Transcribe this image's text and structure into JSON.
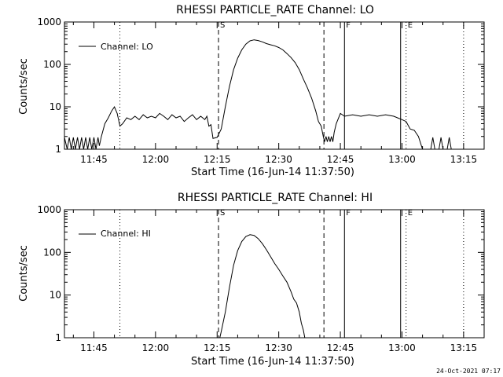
{
  "timestamp": "24-Oct-2021 07:17",
  "chart_data": [
    {
      "type": "line",
      "title": "RHESSI PARTICLE_RATE Channel: LO",
      "xlabel": "Start Time (16-Jun-14 11:37:50)",
      "ylabel": "Counts/sec",
      "yscale": "log",
      "ylim": [
        1,
        1000
      ],
      "xlim": [
        "11:37:50",
        "13:20:00"
      ],
      "ytick_labels": [
        "1",
        "10",
        "100",
        "1000"
      ],
      "xtick_labels": [
        "11:45",
        "12:00",
        "12:15",
        "12:30",
        "12:45",
        "13:00",
        "13:15"
      ],
      "legend": {
        "position": "top-left",
        "entries": [
          "Channel: LO"
        ]
      },
      "markers": [
        {
          "label": "S",
          "time": "12:15:20",
          "style": "dashed"
        },
        {
          "label": "",
          "time": "12:41:00",
          "style": "dashed"
        },
        {
          "label": "F",
          "time": "12:46:00",
          "style": "solid"
        },
        {
          "label": "",
          "time": "12:59:40",
          "style": "solid"
        },
        {
          "label": "E",
          "time": "13:01:00",
          "style": "dotted"
        },
        {
          "label": "",
          "time": "11:51:20",
          "style": "dotted"
        },
        {
          "label": "",
          "time": "13:15:00",
          "style": "dotted"
        }
      ],
      "series": [
        {
          "name": "Channel: LO",
          "points": [
            [
              "11:37:50",
              1.9
            ],
            [
              "11:38:30",
              1.0
            ],
            [
              "11:39:00",
              1.9
            ],
            [
              "11:39:30",
              1.0
            ],
            [
              "11:40:00",
              1.9
            ],
            [
              "11:40:30",
              1.0
            ],
            [
              "11:41:00",
              1.9
            ],
            [
              "11:41:30",
              1.0
            ],
            [
              "11:42:00",
              1.9
            ],
            [
              "11:42:30",
              1.0
            ],
            [
              "11:43:00",
              1.9
            ],
            [
              "11:43:30",
              1.0
            ],
            [
              "11:44:00",
              1.9
            ],
            [
              "11:44:30",
              1.0
            ],
            [
              "11:45:00",
              1.9
            ],
            [
              "11:45:30",
              1.0
            ],
            [
              "11:46:00",
              1.9
            ],
            [
              "11:46:20",
              1.2
            ],
            [
              "11:46:50",
              2.0
            ],
            [
              "11:47:40",
              4.0
            ],
            [
              "11:48:30",
              5.5
            ],
            [
              "11:49:20",
              8.0
            ],
            [
              "11:50:00",
              10.0
            ],
            [
              "11:50:40",
              7.0
            ],
            [
              "11:51:20",
              3.5
            ],
            [
              "11:52:00",
              4.0
            ],
            [
              "11:53:00",
              5.5
            ],
            [
              "11:54:00",
              5.0
            ],
            [
              "11:55:00",
              6.0
            ],
            [
              "11:56:00",
              5.0
            ],
            [
              "11:57:00",
              6.5
            ],
            [
              "11:58:00",
              5.5
            ],
            [
              "11:59:00",
              6.0
            ],
            [
              "12:00:00",
              5.5
            ],
            [
              "12:01:00",
              7.0
            ],
            [
              "12:02:00",
              6.0
            ],
            [
              "12:03:00",
              5.0
            ],
            [
              "12:04:00",
              6.5
            ],
            [
              "12:05:00",
              5.5
            ],
            [
              "12:06:00",
              6.0
            ],
            [
              "12:07:00",
              4.5
            ],
            [
              "12:08:00",
              5.5
            ],
            [
              "12:09:00",
              6.5
            ],
            [
              "12:10:00",
              5.0
            ],
            [
              "12:11:00",
              6.0
            ],
            [
              "12:12:00",
              5.0
            ],
            [
              "12:12:30",
              6.0
            ],
            [
              "12:13:00",
              3.5
            ],
            [
              "12:13:30",
              3.8
            ],
            [
              "12:14:00",
              1.8
            ],
            [
              "12:15:00",
              1.9
            ],
            [
              "12:16:00",
              3.0
            ],
            [
              "12:17:00",
              10
            ],
            [
              "12:18:00",
              30
            ],
            [
              "12:19:00",
              75
            ],
            [
              "12:20:00",
              140
            ],
            [
              "12:21:00",
              220
            ],
            [
              "12:22:00",
              300
            ],
            [
              "12:23:00",
              360
            ],
            [
              "12:24:00",
              380
            ],
            [
              "12:25:00",
              365
            ],
            [
              "12:26:00",
              340
            ],
            [
              "12:27:00",
              310
            ],
            [
              "12:28:00",
              290
            ],
            [
              "12:29:00",
              275
            ],
            [
              "12:30:00",
              250
            ],
            [
              "12:31:00",
              220
            ],
            [
              "12:32:00",
              180
            ],
            [
              "12:33:00",
              145
            ],
            [
              "12:34:00",
              110
            ],
            [
              "12:35:00",
              75
            ],
            [
              "12:36:00",
              45
            ],
            [
              "12:37:00",
              28
            ],
            [
              "12:38:00",
              16
            ],
            [
              "12:39:00",
              8.0
            ],
            [
              "12:39:40",
              4.5
            ],
            [
              "12:40:20",
              3.5
            ],
            [
              "12:40:50",
              2.0
            ],
            [
              "12:41:10",
              1.5
            ],
            [
              "12:41:30",
              2.0
            ],
            [
              "12:41:50",
              1.5
            ],
            [
              "12:42:10",
              2.0
            ],
            [
              "12:42:30",
              1.5
            ],
            [
              "12:42:50",
              2.0
            ],
            [
              "12:43:10",
              1.5
            ],
            [
              "12:43:30",
              2.5
            ],
            [
              "12:44:00",
              4.0
            ],
            [
              "12:45:00",
              7.0
            ],
            [
              "12:46:00",
              6.0
            ],
            [
              "12:48:00",
              6.5
            ],
            [
              "12:50:00",
              6.0
            ],
            [
              "12:52:00",
              6.5
            ],
            [
              "12:54:00",
              6.0
            ],
            [
              "12:56:00",
              6.5
            ],
            [
              "12:58:00",
              6.0
            ],
            [
              "13:00:00",
              5.0
            ],
            [
              "13:01:00",
              4.5
            ],
            [
              "13:02:00",
              3.0
            ],
            [
              "13:03:00",
              2.8
            ],
            [
              "13:04:00",
              2.0
            ],
            [
              "13:05:00",
              1.0
            ],
            [
              "13:07:00",
              1.0
            ],
            [
              "13:07:30",
              1.9
            ],
            [
              "13:08:00",
              1.0
            ],
            [
              "13:09:00",
              1.0
            ],
            [
              "13:09:30",
              1.9
            ],
            [
              "13:10:00",
              1.0
            ],
            [
              "13:11:00",
              1.0
            ],
            [
              "13:11:30",
              1.9
            ],
            [
              "13:12:00",
              1.0
            ]
          ]
        }
      ]
    },
    {
      "type": "line",
      "title": "RHESSI PARTICLE_RATE Channel: HI",
      "xlabel": "Start Time (16-Jun-14 11:37:50)",
      "ylabel": "Counts/sec",
      "yscale": "log",
      "ylim": [
        1,
        1000
      ],
      "xlim": [
        "11:37:50",
        "13:20:00"
      ],
      "ytick_labels": [
        "1",
        "10",
        "100",
        "1000"
      ],
      "xtick_labels": [
        "11:45",
        "12:00",
        "12:15",
        "12:30",
        "12:45",
        "13:00",
        "13:15"
      ],
      "legend": {
        "position": "top-left",
        "entries": [
          "Channel: HI"
        ]
      },
      "markers": [
        {
          "label": "S",
          "time": "12:15:20",
          "style": "dashed"
        },
        {
          "label": "",
          "time": "12:41:00",
          "style": "dashed"
        },
        {
          "label": "F",
          "time": "12:46:00",
          "style": "solid"
        },
        {
          "label": "",
          "time": "12:59:40",
          "style": "solid"
        },
        {
          "label": "E",
          "time": "13:01:00",
          "style": "dotted"
        },
        {
          "label": "",
          "time": "11:51:20",
          "style": "dotted"
        },
        {
          "label": "",
          "time": "13:15:00",
          "style": "dotted"
        }
      ],
      "series": [
        {
          "name": "Channel: HI",
          "points": [
            [
              "12:15:40",
              1.0
            ],
            [
              "12:16:00",
              1.4
            ],
            [
              "12:17:00",
              4.0
            ],
            [
              "12:18:00",
              15
            ],
            [
              "12:19:00",
              50
            ],
            [
              "12:20:00",
              110
            ],
            [
              "12:21:00",
              180
            ],
            [
              "12:22:00",
              235
            ],
            [
              "12:23:00",
              260
            ],
            [
              "12:24:00",
              250
            ],
            [
              "12:25:00",
              210
            ],
            [
              "12:26:00",
              160
            ],
            [
              "12:27:00",
              115
            ],
            [
              "12:28:00",
              80
            ],
            [
              "12:29:00",
              55
            ],
            [
              "12:30:00",
              40
            ],
            [
              "12:31:00",
              28
            ],
            [
              "12:32:00",
              20
            ],
            [
              "12:33:00",
              12
            ],
            [
              "12:33:40",
              8.0
            ],
            [
              "12:34:20",
              6.5
            ],
            [
              "12:35:00",
              4.0
            ],
            [
              "12:35:30",
              2.2
            ],
            [
              "12:36:00",
              1.5
            ],
            [
              "12:36:20",
              1.0
            ]
          ]
        }
      ]
    }
  ]
}
